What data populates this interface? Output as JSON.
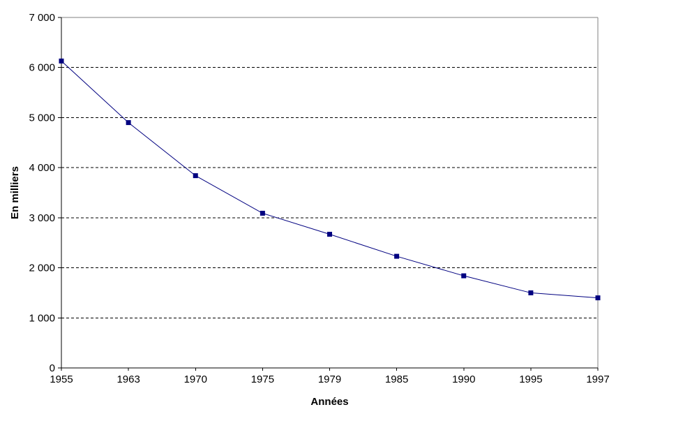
{
  "chart_data": {
    "type": "line",
    "title": "",
    "xlabel": "Années",
    "ylabel": "En milliers",
    "categories": [
      "1955",
      "1963",
      "1970",
      "1975",
      "1979",
      "1985",
      "1990",
      "1995",
      "1997"
    ],
    "series": [
      {
        "name": "En milliers",
        "values": [
          6130,
          4900,
          3840,
          3090,
          2670,
          2230,
          1840,
          1500,
          1400
        ]
      }
    ],
    "ylim": [
      0,
      7000
    ],
    "ytick_step": 1000,
    "ytick_labels": [
      "0",
      "1 000",
      "2 000",
      "3 000",
      "4 000",
      "5 000",
      "6 000",
      "7 000"
    ],
    "grid": "horizontal-dashed",
    "legend": "none",
    "marker": "square",
    "colors": {
      "series": "#000080",
      "grid": "#000000",
      "axis": "#000000",
      "plot_border": "#808080",
      "background": "#ffffff",
      "text": "#000000"
    }
  }
}
